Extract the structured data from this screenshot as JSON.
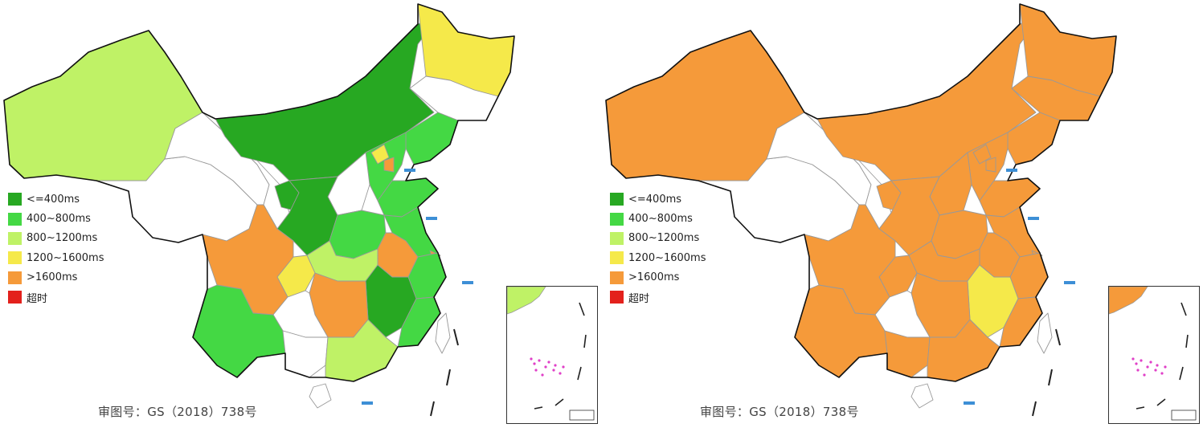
{
  "panels": [
    {
      "id": "left",
      "credit": "审图号：GS（2018）738号",
      "fills": {
        "xinjiang": "#bff266",
        "xizang": "#ffffff",
        "qinghai": "#ffffff",
        "gansu": "#ffffff",
        "neimenggu": "#27a822",
        "heilongjiang": "#f5e94a",
        "jilin": "#ffffff",
        "liaoning": "#44d844",
        "hebei": "#44d844",
        "beijing": "#f5e94a",
        "tianjin": "#f59a3a",
        "shanxi": "#ffffff",
        "ningxia": "#27a822",
        "shaanxi": "#27a822",
        "shandong": "#44d844",
        "henan": "#44d844",
        "jiangsu": "#44d844",
        "shanghai": "#f59a3a",
        "anhui": "#f59a3a",
        "hubei": "#bff266",
        "chongqing": "#f5e94a",
        "sichuan": "#f59a3a",
        "zhejiang": "#44d844",
        "jiangxi": "#27a822",
        "fujian": "#44d844",
        "hunan": "#f59a3a",
        "guizhou": "#ffffff",
        "yunnan": "#44d844",
        "guangxi": "#ffffff",
        "guangdong": "#bff266",
        "hainan": "#ffffff",
        "taiwan": "#ffffff",
        "inset_coast": "#bff266"
      }
    },
    {
      "id": "right",
      "credit": "审图号：GS（2018）738号",
      "fills": {
        "xinjiang": "#f59a3a",
        "xizang": "#ffffff",
        "qinghai": "#ffffff",
        "gansu": "#ffffff",
        "neimenggu": "#f59a3a",
        "heilongjiang": "#f59a3a",
        "jilin": "#f59a3a",
        "liaoning": "#f59a3a",
        "hebei": "#f59a3a",
        "beijing": "#f59a3a",
        "tianjin": "#f59a3a",
        "shanxi": "#f59a3a",
        "ningxia": "#f59a3a",
        "shaanxi": "#f59a3a",
        "shandong": "#f59a3a",
        "henan": "#f59a3a",
        "jiangsu": "#f59a3a",
        "shanghai": "#f59a3a",
        "anhui": "#f59a3a",
        "hubei": "#f59a3a",
        "chongqing": "#f59a3a",
        "sichuan": "#f59a3a",
        "zhejiang": "#f59a3a",
        "jiangxi": "#f5e94a",
        "fujian": "#f59a3a",
        "hunan": "#f59a3a",
        "guizhou": "#ffffff",
        "yunnan": "#f59a3a",
        "guangxi": "#f59a3a",
        "guangdong": "#f59a3a",
        "hainan": "#ffffff",
        "taiwan": "#ffffff",
        "inset_coast": "#f59a3a"
      }
    }
  ],
  "legend": [
    {
      "label": "<=400ms",
      "color": "#27a822"
    },
    {
      "label": "400~800ms",
      "color": "#44d844"
    },
    {
      "label": "800~1200ms",
      "color": "#bff266"
    },
    {
      "label": "1200~1600ms",
      "color": "#f5e94a"
    },
    {
      "label": ">1600ms",
      "color": "#f59a3a"
    },
    {
      "label": "超时",
      "color": "#e3211c"
    }
  ],
  "colors": {
    "border": "#999999",
    "outline": "#111111",
    "sea_blue": "#3d8fd6",
    "inset_islands": "#e040c8"
  }
}
